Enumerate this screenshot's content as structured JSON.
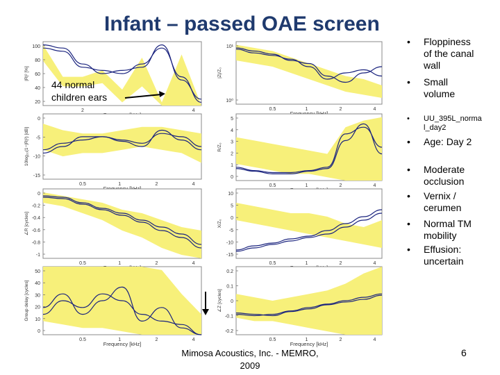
{
  "title": "Infant – passed OAE screen",
  "annotation": [
    "44 normal",
    "children ears"
  ],
  "panels": {
    "left": [
      {
        "ylabel": "|R|² [%]",
        "xlabel": "Frequency [kHz]",
        "yticks": [
          "100",
          "80",
          "60",
          "40",
          "20"
        ],
        "xticks": [
          "2",
          "4"
        ]
      },
      {
        "ylabel": "10log₁₀(1−|R|²) [dB]",
        "xlabel": "Frequency [kHz]",
        "yticks": [
          "0",
          "-5",
          "-10",
          "-15"
        ],
        "xticks": [
          "0.5",
          "1",
          "2",
          "4"
        ]
      },
      {
        "ylabel": "∠R [cycles]",
        "xlabel": "Frequency [kHz]",
        "yticks": [
          "0",
          "-0.2",
          "-0.4",
          "-0.6",
          "-0.8",
          "-1"
        ],
        "xticks": [
          "0.5",
          "1",
          "2",
          "4"
        ]
      },
      {
        "ylabel": "Group delay [cycles]",
        "xlabel": "Frequency [kHz]",
        "yticks": [
          "50",
          "40",
          "30",
          "20",
          "10",
          "0"
        ],
        "xticks": [
          "0.5",
          "1",
          "2",
          "4"
        ]
      }
    ],
    "right": [
      {
        "ylabel": "|Z|/Z₀",
        "xlabel": "Frequency [kHz]",
        "yticks": [
          "10¹",
          "10⁰"
        ],
        "xticks": [
          "0.5",
          "1",
          "2",
          "4"
        ]
      },
      {
        "ylabel": "R/Z₀",
        "xlabel": "Frequency [kHz]",
        "yticks": [
          "5",
          "4",
          "3",
          "2",
          "1",
          "0"
        ],
        "xticks": [
          "0.5",
          "1",
          "2",
          "4"
        ]
      },
      {
        "ylabel": "X/Z₀",
        "xlabel": "Frequency [kHz]",
        "yticks": [
          "10",
          "5",
          "0",
          "-5",
          "-10",
          "-15"
        ],
        "xticks": [
          "0.5",
          "1",
          "2",
          "4"
        ]
      },
      {
        "ylabel": "∠Z [cycles]",
        "xlabel": "Frequency [kHz]",
        "yticks": [
          "0.2",
          "0.1",
          "0",
          "-0.1",
          "-0.2"
        ],
        "xticks": [
          "0.5",
          "1",
          "2",
          "4"
        ]
      }
    ]
  },
  "bullets": [
    {
      "marker": "•",
      "lines": [
        "Floppiness",
        "of the canal",
        "wall"
      ],
      "small": false
    },
    {
      "marker": "•",
      "lines": [
        "Small",
        "volume"
      ],
      "small": false
    },
    {
      "marker": "•",
      "lines": [
        "UU_395L_norma",
        "l_day2"
      ],
      "small": true
    },
    {
      "marker": "•",
      "lines": [
        "Age: Day 2"
      ],
      "small": false
    },
    {
      "marker": "•",
      "lines": [
        "Moderate",
        "occlusion"
      ],
      "small": false
    },
    {
      "marker": "•",
      "lines": [
        "Vernix /",
        "cerumen"
      ],
      "small": false
    },
    {
      "marker": "•",
      "lines": [
        "Normal TM",
        "mobility"
      ],
      "small": false
    },
    {
      "marker": "•",
      "lines": [
        "Effusion:",
        "uncertain"
      ],
      "small": false
    }
  ],
  "footer": [
    "Mimosa Acoustics, Inc. - MEMRO,",
    "2009"
  ],
  "page_number": "6",
  "colors": {
    "title": "#1f3a6e",
    "band": "#f7f07a",
    "curve": "#1a237e"
  }
}
